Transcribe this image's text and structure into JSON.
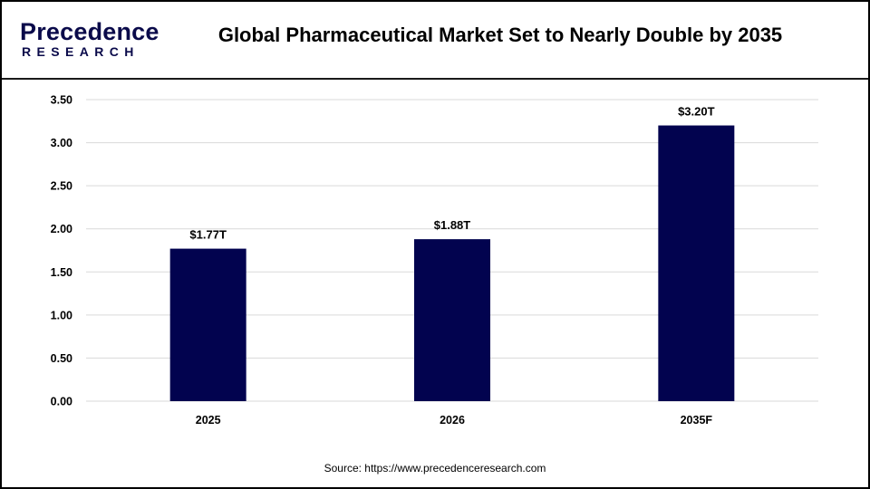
{
  "header": {
    "logo_main": "Precedence",
    "logo_sub": "RESEARCH",
    "title": "Global Pharmaceutical Market Set to Nearly Double by 2035"
  },
  "source": "Source: https://www.precedenceresearch.com",
  "colors": {
    "bar": "#02034f",
    "grid": "#d9d9d9",
    "accent": "#1d8fe0"
  },
  "chart_data": {
    "type": "bar",
    "categories": [
      "2025",
      "2026",
      "2035F"
    ],
    "values": [
      1.77,
      1.88,
      3.2
    ],
    "data_labels": [
      "$1.77T",
      "$1.88T",
      "$3.20T"
    ],
    "y_ticks": [
      "0.00",
      "0.50",
      "1.00",
      "1.50",
      "2.00",
      "2.50",
      "3.00",
      "3.50"
    ],
    "ylim": [
      0,
      3.5
    ],
    "grid": true,
    "legend": "none"
  }
}
